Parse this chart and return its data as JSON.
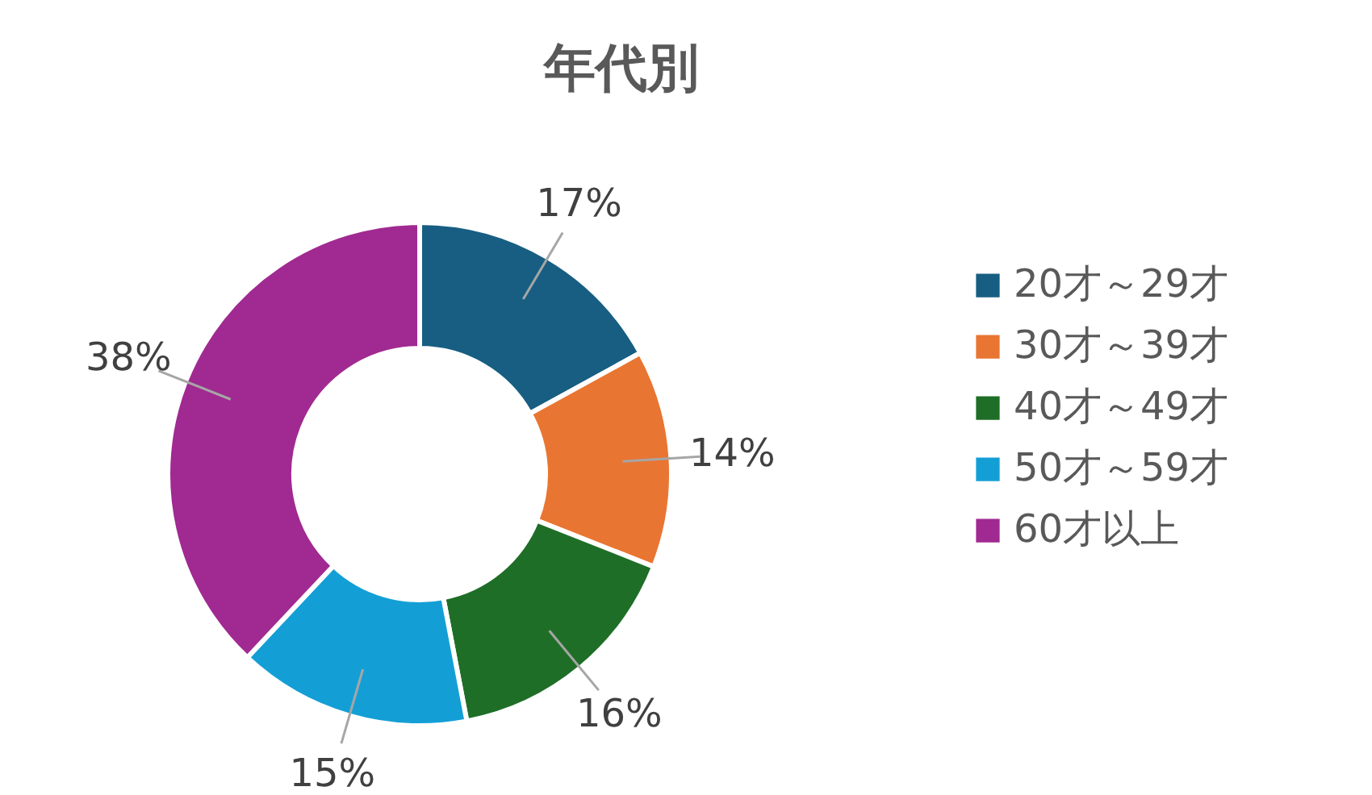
{
  "chart_data": {
    "type": "donut",
    "title": "年代別",
    "categories": [
      "20才～29才",
      "30才～39才",
      "40才～49才",
      "50才～59才",
      "60才以上"
    ],
    "values": [
      17,
      14,
      16,
      15,
      38
    ],
    "colors": [
      "#175e82",
      "#e97532",
      "#1f6e27",
      "#139fd5",
      "#a02a91"
    ],
    "value_labels": [
      "17%",
      "14%",
      "16%",
      "15%",
      "38%"
    ],
    "legend": "right"
  }
}
